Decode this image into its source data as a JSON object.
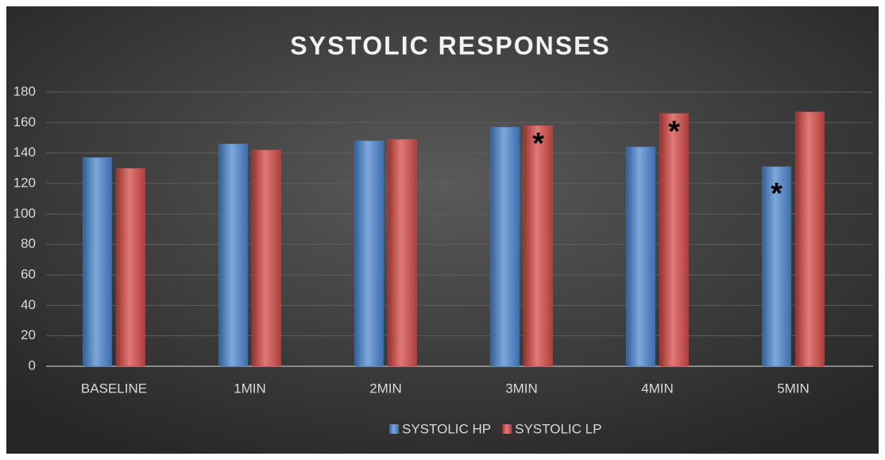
{
  "chart_data": {
    "type": "bar",
    "title": "SYSTOLIC RESPONSES",
    "categories": [
      "BASELINE",
      "1MIN",
      "2MIN",
      "3MIN",
      "4MIN",
      "5MIN"
    ],
    "series": [
      {
        "name": "SYSTOLIC HP",
        "color": "#4f81bd",
        "values": [
          137,
          146,
          148,
          157,
          144,
          131
        ]
      },
      {
        "name": "SYSTOLIC LP",
        "color": "#c0504d",
        "values": [
          130,
          142,
          149,
          158,
          166,
          167
        ]
      }
    ],
    "ylim": [
      0,
      180
    ],
    "yticks": [
      0,
      20,
      40,
      60,
      80,
      100,
      120,
      140,
      160,
      180
    ],
    "grid": true,
    "legend": "bottom",
    "annotations": [
      "*",
      "*",
      "*"
    ]
  }
}
